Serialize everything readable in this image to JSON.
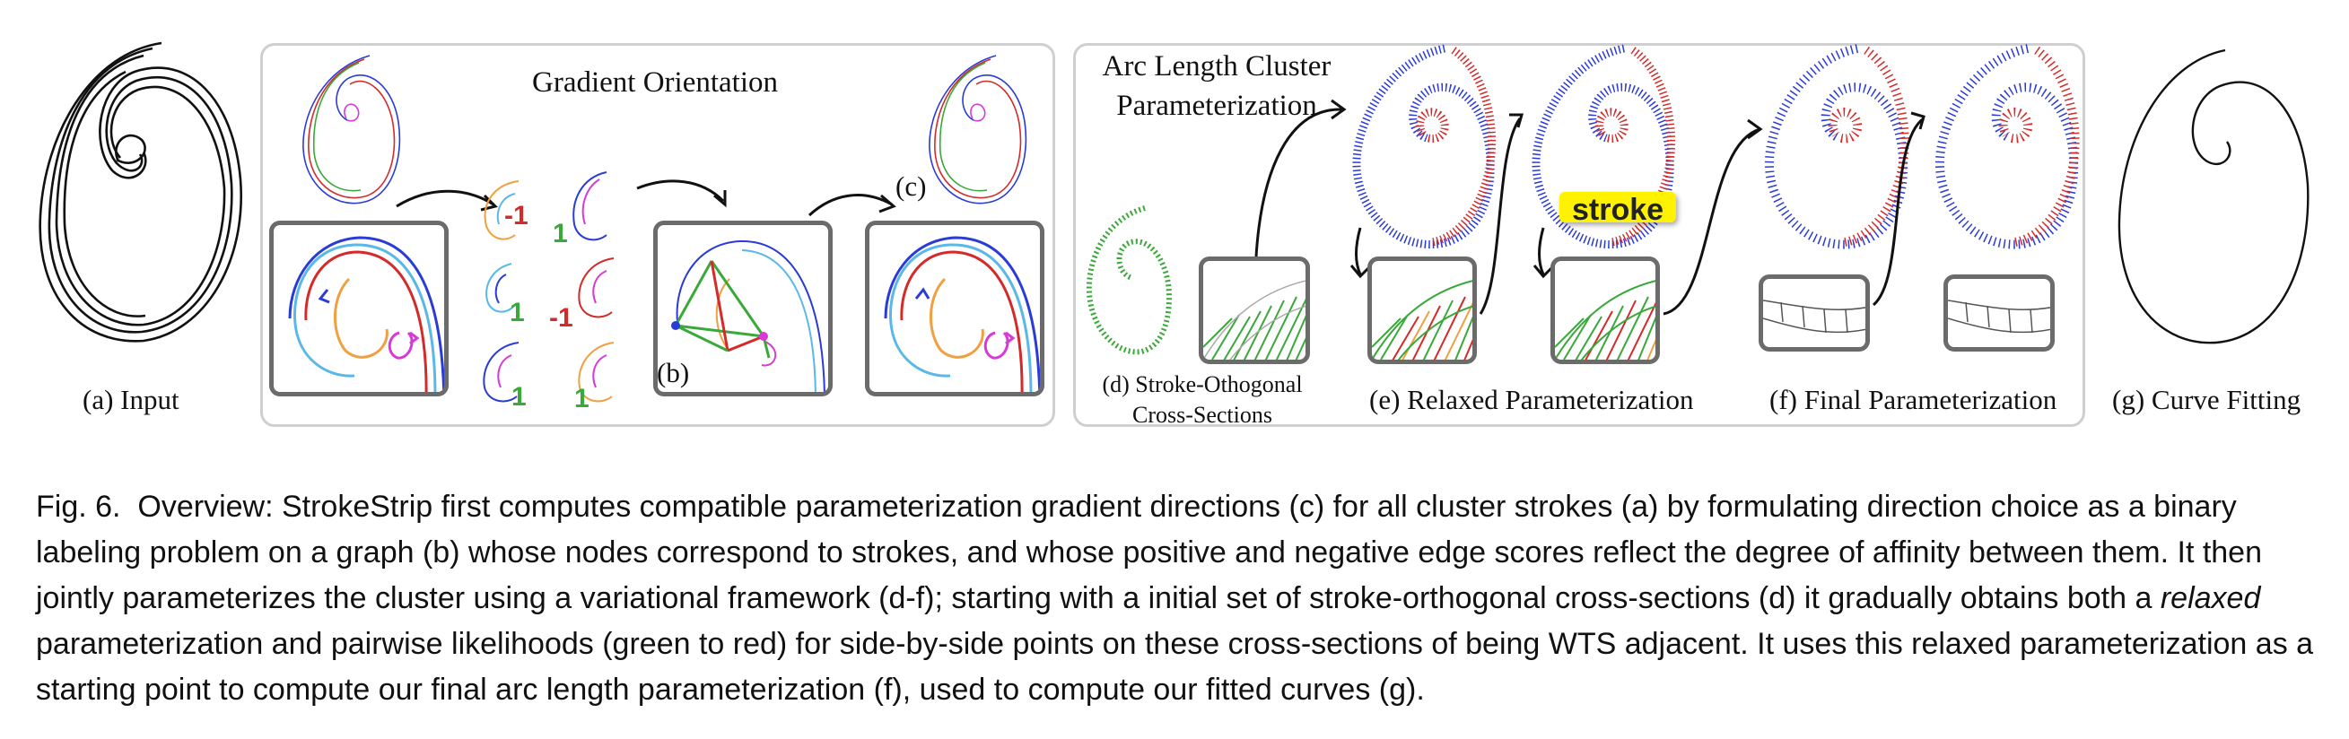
{
  "figure": {
    "panels": {
      "input": {
        "label": "(a) Input"
      },
      "gradient": {
        "title": "Gradient Orientation",
        "callout_b": "(b)",
        "callout_c": "(c)",
        "scores": [
          "-1",
          "1",
          "1",
          "-1",
          "1",
          "1"
        ]
      },
      "arc": {
        "title": "Arc Length Cluster Parameterization",
        "label_d": "(d) Stroke-Othogonal Cross-Sections",
        "label_e": "(e) Relaxed Parameterization",
        "label_f": "(f) Final Parameterization",
        "sticker": "stroke"
      },
      "fitting": {
        "label": "(g) Curve Fitting"
      }
    },
    "colors": {
      "blue": "#2a3bd6",
      "red": "#d42a2a",
      "green": "#3aa83a",
      "cyan": "#5ab8e8",
      "orange": "#f0a040",
      "magenta": "#d83ad8"
    }
  },
  "caption": {
    "prefix": "Fig. 6.",
    "part1": "Overview: StrokeStrip first computes compatible parameterization gradient directions (c) for all cluster strokes (a) by formulating direction choice as a binary labeling problem on a graph (b) whose nodes correspond to strokes, and whose positive and negative edge scores reflect the degree of affinity between them. It then jointly parameterizes the cluster using a variational framework (d-f); starting with a initial set of stroke-orthogonal cross-sections (d) it gradually obtains both a",
    "emph": "relaxed",
    "part2": "parameterization and pairwise likelihoods (green to red) for side-by-side points on these cross-sections of being WTS adjacent. It uses this relaxed parameterization as a starting point to compute our final arc length parameterization (f), used to compute our fitted curves (g)."
  }
}
